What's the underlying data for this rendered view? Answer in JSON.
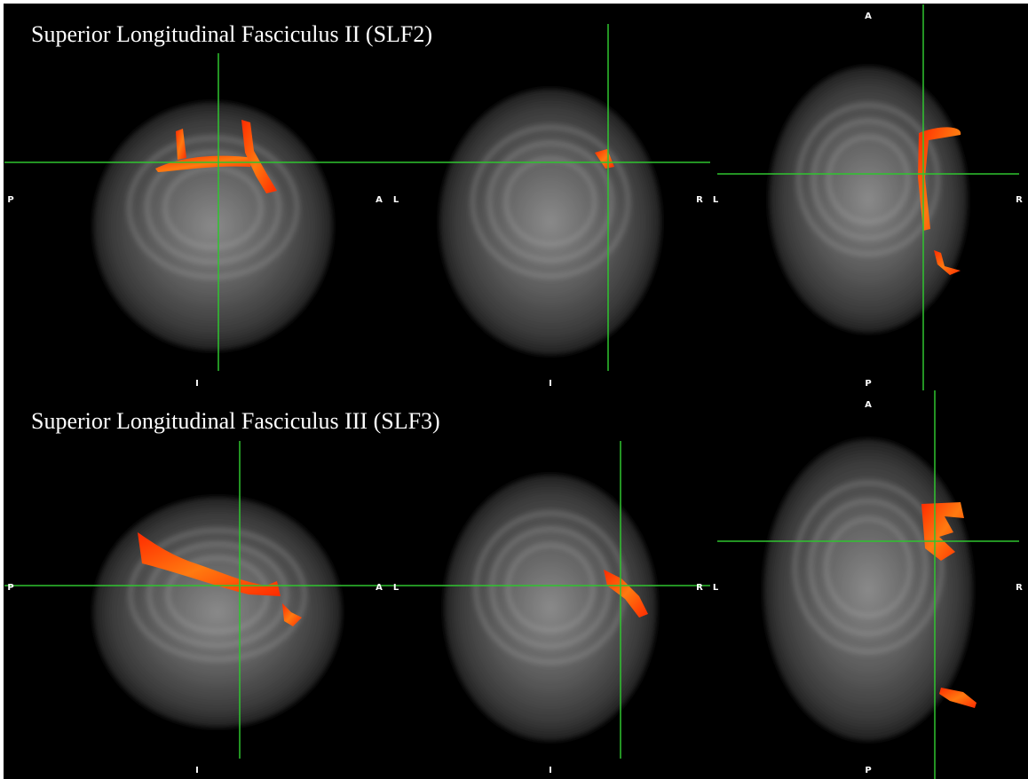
{
  "rows": [
    {
      "title": "Superior Longitudinal Fasciculus II (SLF2)",
      "sagittal": {
        "left": "P",
        "right": "A",
        "bottom": "I"
      },
      "coronal": {
        "left": "L",
        "right": "R",
        "bottom": "I"
      },
      "axial": {
        "top": "A",
        "left": "L",
        "right": "R",
        "bottom": "P"
      }
    },
    {
      "title": "Superior Longitudinal Fasciculus III (SLF3)",
      "sagittal": {
        "left": "P",
        "right": "A",
        "bottom": "I"
      },
      "coronal": {
        "left": "L",
        "right": "R",
        "bottom": "I"
      },
      "axial": {
        "top": "A",
        "left": "L",
        "right": "R",
        "bottom": "P"
      }
    }
  ]
}
